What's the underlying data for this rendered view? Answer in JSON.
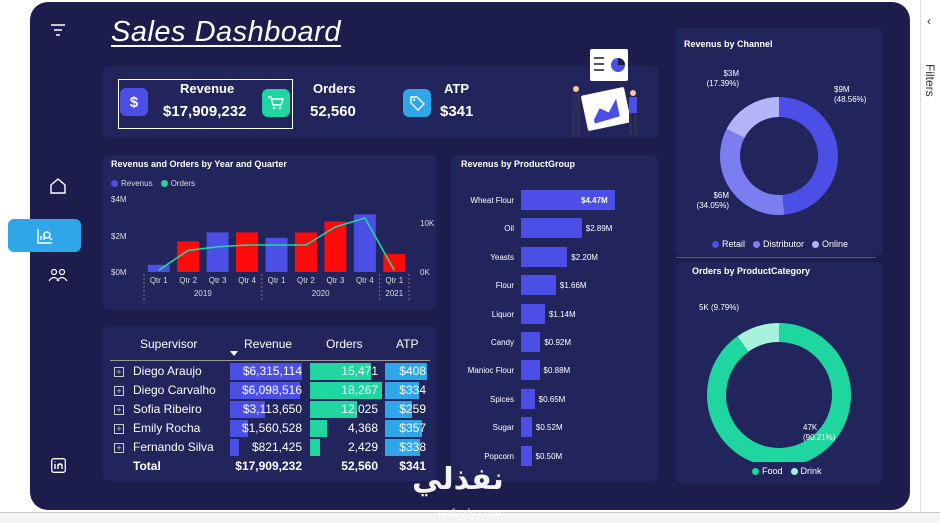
{
  "title": "Sales Dashboard",
  "kpis": [
    {
      "label": "Revenue",
      "value": "$17,909,232",
      "icon": "dollar-icon"
    },
    {
      "label": "Orders",
      "value": "52,560",
      "icon": "cart-icon"
    },
    {
      "label": "ATP",
      "value": "$341",
      "icon": "tag-icon"
    }
  ],
  "sidebar": {
    "items": [
      "filter-icon",
      "home-icon",
      "analytics-icon",
      "people-icon",
      "linkedin-icon"
    ]
  },
  "filters_pane": {
    "label": "Filters"
  },
  "colors": {
    "revenue_bar": "#4b4fe6",
    "revenue_highlight": "#ff0a0a",
    "orders_line": "#1fd6a0",
    "bg": "#1c1d4d",
    "panel": "#22245c"
  },
  "yearQuarter": {
    "title": "Revenus and Orders by Year and Quarter",
    "legend": [
      "Revenus",
      "Orders"
    ],
    "yleft": [
      "$4M",
      "$2M",
      "$0M"
    ],
    "yright": [
      "10K",
      "0K"
    ],
    "years": [
      {
        "label": "2019",
        "quarters": [
          "Qtr 1",
          "Qtr 2",
          "Qtr 3",
          "Qtr 4"
        ]
      },
      {
        "label": "2020",
        "quarters": [
          "Qtr 1",
          "Qtr 2",
          "Qtr 3",
          "Qtr 4"
        ]
      },
      {
        "label": "2021",
        "quarters": [
          "Qtr 1"
        ]
      }
    ]
  },
  "table": {
    "headers": [
      "Supervisor",
      "Revenue",
      "Orders",
      "ATP"
    ],
    "rows": [
      {
        "name": "Diego Araujo",
        "revenue": "$6,315,114",
        "orders": "15,471",
        "atp": "$408"
      },
      {
        "name": "Diego Carvalho",
        "revenue": "$6,098,516",
        "orders": "18,267",
        "atp": "$334"
      },
      {
        "name": "Sofia Ribeiro",
        "revenue": "$3,113,650",
        "orders": "12,025",
        "atp": "$259"
      },
      {
        "name": "Emily Rocha",
        "revenue": "$1,560,528",
        "orders": "4,368",
        "atp": "$357"
      },
      {
        "name": "Fernando Silva",
        "revenue": "$821,425",
        "orders": "2,429",
        "atp": "$338"
      }
    ],
    "total": {
      "name": "Total",
      "revenue": "$17,909,232",
      "orders": "52,560",
      "atp": "$341"
    }
  },
  "watermark": {
    "text": "نفذلي",
    "sub": "nafezly.com"
  },
  "chart_data": [
    {
      "type": "bar",
      "title": "Revenus and Orders by Year and Quarter",
      "categories": [
        "2019 Qtr 1",
        "2019 Qtr 2",
        "2019 Qtr 3",
        "2019 Qtr 4",
        "2020 Qtr 1",
        "2020 Qtr 2",
        "2020 Qtr 3",
        "2020 Qtr 4",
        "2021 Qtr 1"
      ],
      "series": [
        {
          "name": "Revenus",
          "values": [
            0.4,
            1.7,
            2.2,
            2.2,
            1.9,
            2.2,
            2.8,
            3.2,
            1.0
          ]
        },
        {
          "name": "Orders",
          "values": [
            0.1,
            1.2,
            1.4,
            1.5,
            1.5,
            1.5,
            2.5,
            3.0,
            0.1
          ]
        }
      ],
      "highlight": [
        false,
        true,
        false,
        true,
        false,
        true,
        true,
        false,
        true
      ],
      "ylim": [
        0,
        4
      ],
      "y2lim": [
        0,
        10
      ],
      "legend": "top-left"
    },
    {
      "type": "bar",
      "orientation": "horizontal",
      "title": "Revenus by ProductGroup",
      "categories": [
        "Wheat Flour",
        "Oil",
        "Yeasts",
        "Flour",
        "Liquor",
        "Candy",
        "Manioc Flour",
        "Spices",
        "Sugar",
        "Popcorn"
      ],
      "values": [
        4.47,
        2.89,
        2.2,
        1.66,
        1.14,
        0.92,
        0.88,
        0.65,
        0.52,
        0.5
      ],
      "labels": [
        "$4.47M",
        "$2.89M",
        "$2.20M",
        "$1.66M",
        "$1.14M",
        "$0.92M",
        "$0.88M",
        "$0.65M",
        "$0.52M",
        "$0.50M"
      ]
    },
    {
      "type": "pie",
      "donut": true,
      "title": "Revenus by Channel",
      "categories": [
        "Retail",
        "Distributor",
        "Online"
      ],
      "values": [
        48.56,
        34.05,
        17.39
      ],
      "labels": [
        "$9M\n(48.56%)",
        "$6M\n(34.05%)",
        "$3M\n(17.39%)"
      ],
      "colors": [
        "#4b4fe6",
        "#7b7ef0",
        "#b3b5f8"
      ],
      "legend": "bottom"
    },
    {
      "type": "pie",
      "donut": true,
      "title": "Orders by ProductCategory",
      "categories": [
        "Food",
        "Drink"
      ],
      "values": [
        90.21,
        9.79
      ],
      "labels": [
        "47K\n(90.21%)",
        "5K (9.79%)"
      ],
      "colors": [
        "#1fd6a0",
        "#a6f1da"
      ],
      "legend": "bottom"
    }
  ]
}
